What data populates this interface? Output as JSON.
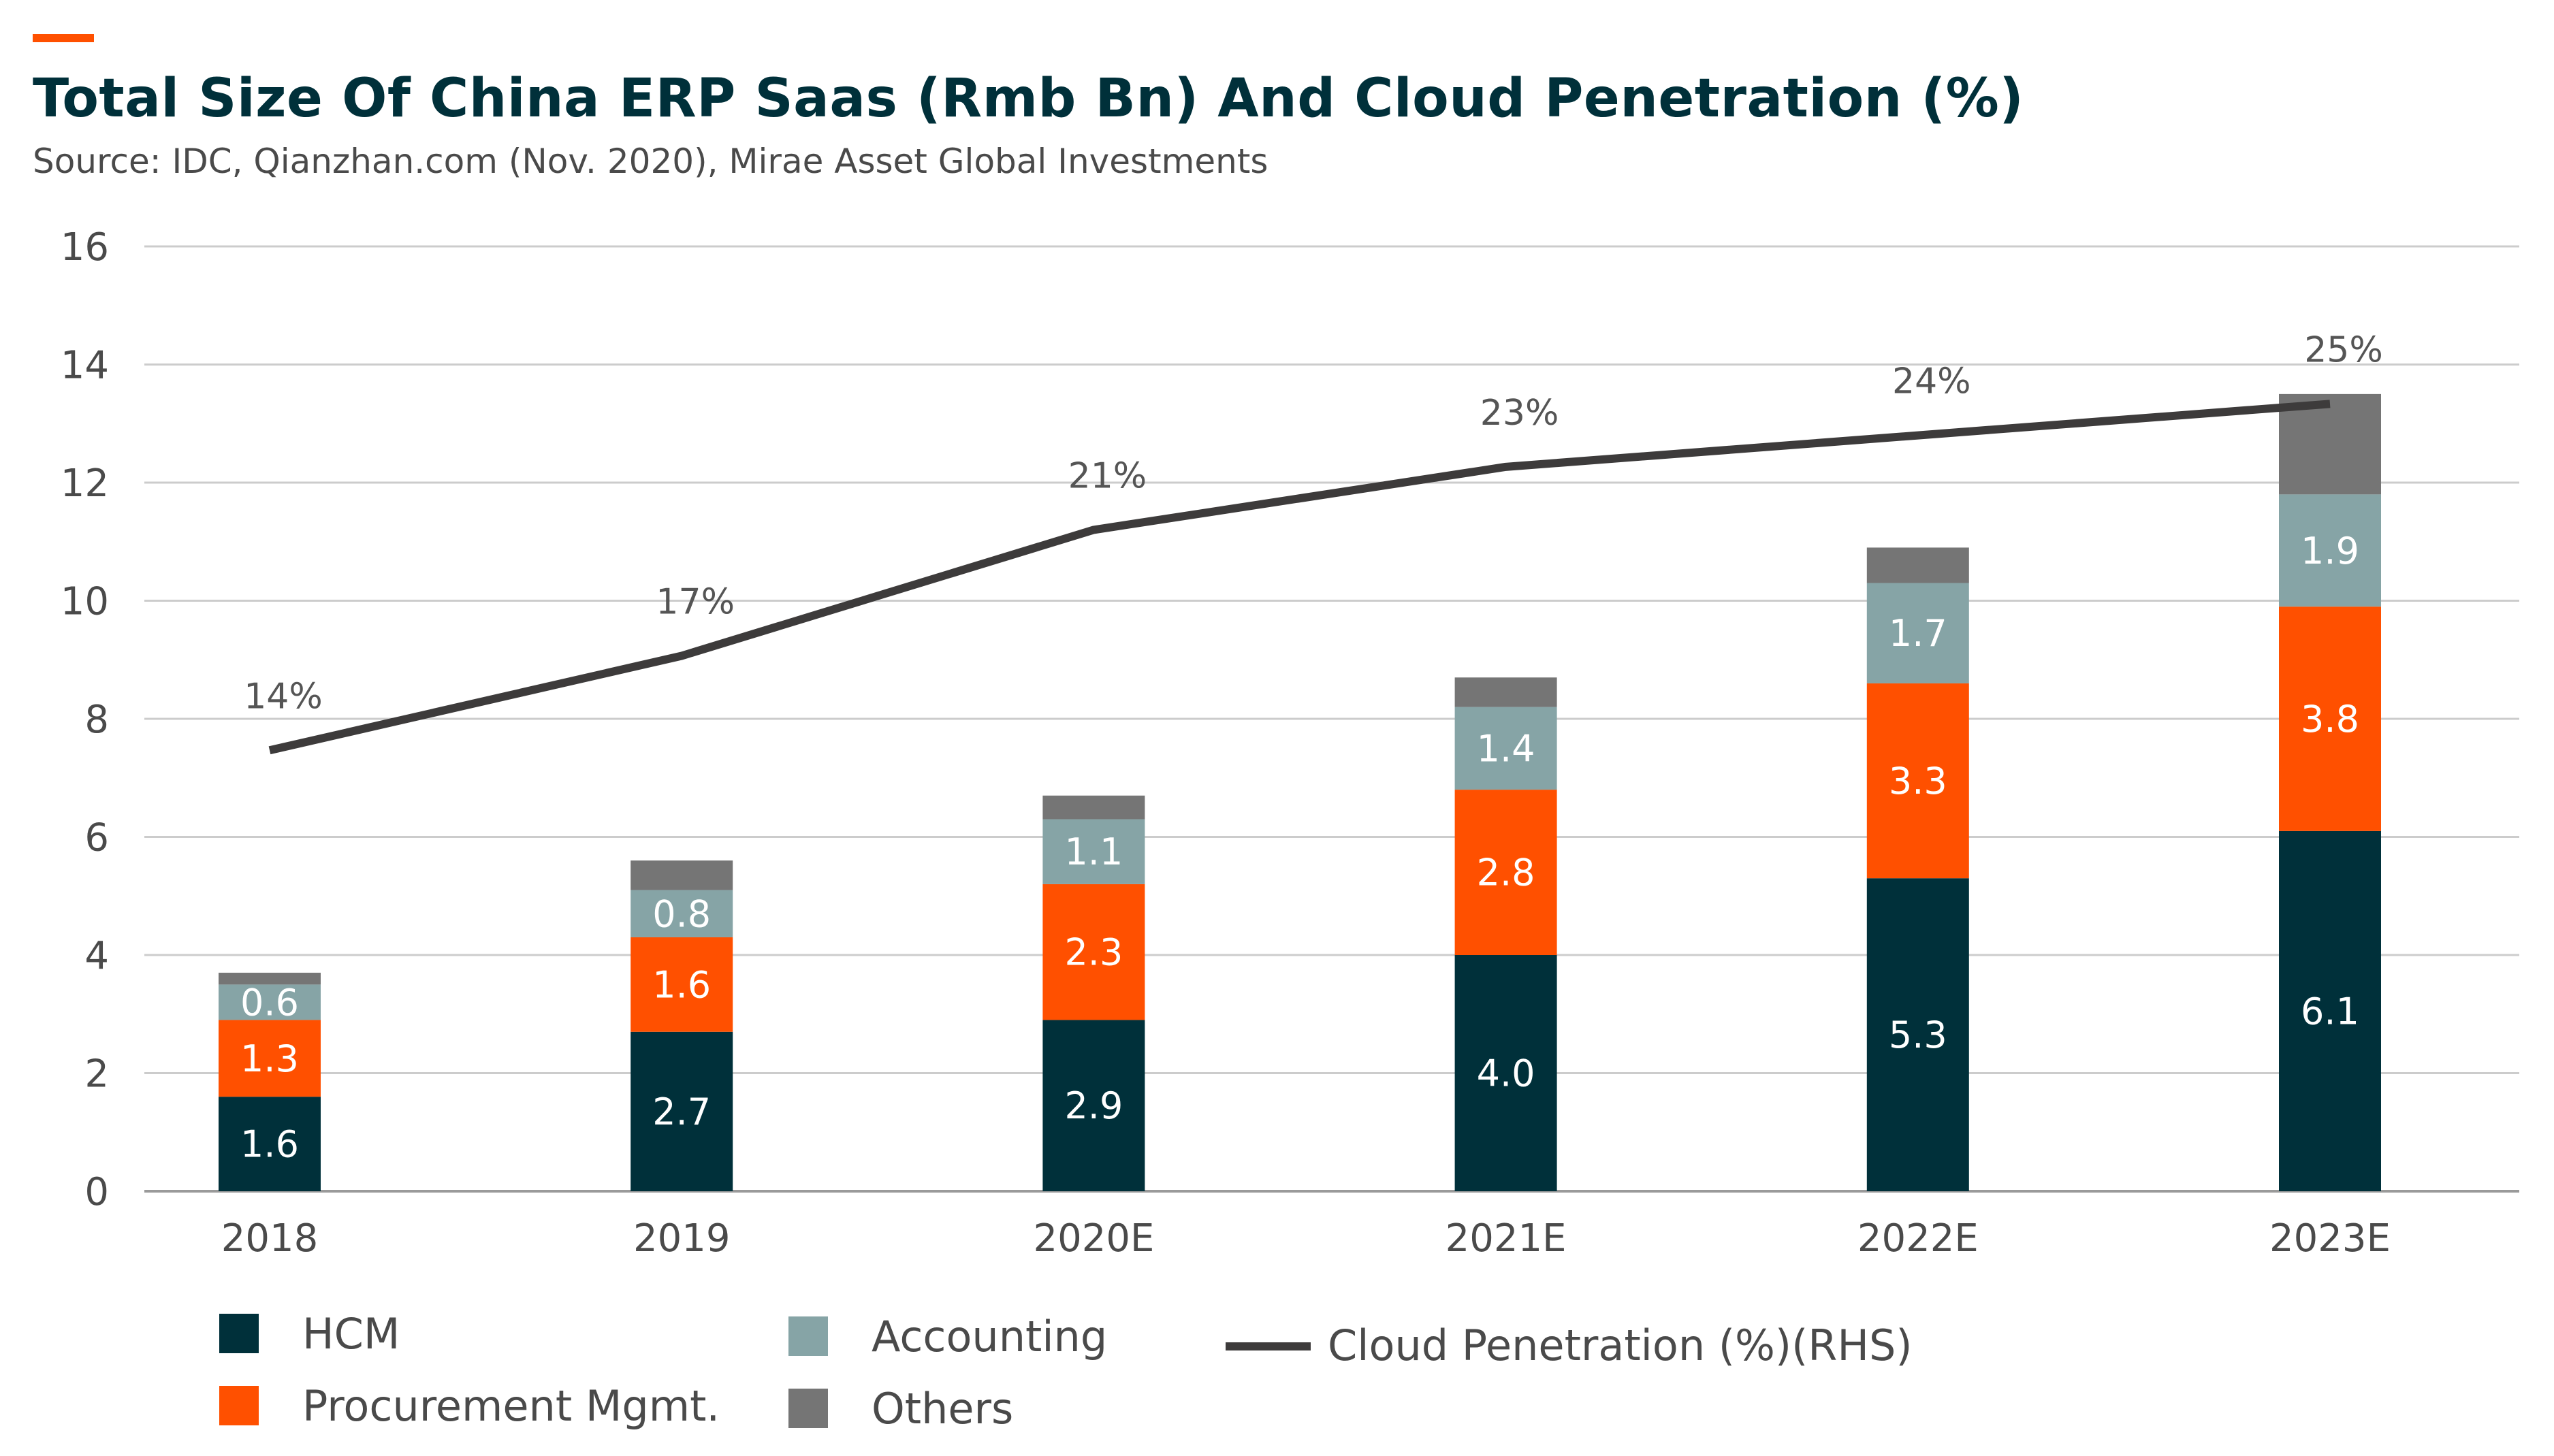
{
  "header": {
    "title": "Total Size Of China ERP Saas (Rmb Bn) And Cloud Penetration (%)",
    "subtitle": "Source: IDC, Qianzhan.com (Nov. 2020), Mirae Asset Global Investments",
    "accent_color": "#ff5000"
  },
  "chart_data": {
    "type": "bar",
    "stacked": true,
    "title": "Total Size Of China ERP Saas (Rmb Bn) And Cloud Penetration (%)",
    "categories": [
      "2018",
      "2019",
      "2020E",
      "2021E",
      "2022E",
      "2023E"
    ],
    "ylim": [
      0,
      16
    ],
    "yticks": [
      0,
      2,
      4,
      6,
      8,
      10,
      12,
      14,
      16
    ],
    "grid": true,
    "series": [
      {
        "name": "HCM",
        "color": "#00303a",
        "values": [
          1.6,
          2.7,
          2.9,
          4.0,
          5.3,
          6.1
        ],
        "labels": [
          "1.6",
          "2.7",
          "2.9",
          "4.0",
          "5.3",
          "6.1"
        ]
      },
      {
        "name": "Procurement Mgmt.",
        "color": "#ff5000",
        "values": [
          1.3,
          1.6,
          2.3,
          2.8,
          3.3,
          3.8
        ],
        "labels": [
          "1.3",
          "1.6",
          "2.3",
          "2.8",
          "3.3",
          "3.8"
        ]
      },
      {
        "name": "Accounting",
        "color": "#86a4a6",
        "values": [
          0.6,
          0.8,
          1.1,
          1.4,
          1.7,
          1.9
        ],
        "labels": [
          "0.6",
          "0.8",
          "1.1",
          "1.4",
          "1.7",
          "1.9"
        ]
      },
      {
        "name": "Others",
        "color": "#757575",
        "values": [
          0.2,
          0.5,
          0.4,
          0.5,
          0.6,
          1.7
        ],
        "labels": null
      }
    ],
    "line": {
      "name": "Cloud Penetration (%)(RHS)",
      "color": "#3d3b3b",
      "values": [
        14,
        17,
        21,
        23,
        24,
        25
      ],
      "labels": [
        "14%",
        "17%",
        "21%",
        "23%",
        "24%",
        "25%"
      ],
      "axis": "right"
    },
    "legend": {
      "placement": "bottom-left"
    }
  }
}
